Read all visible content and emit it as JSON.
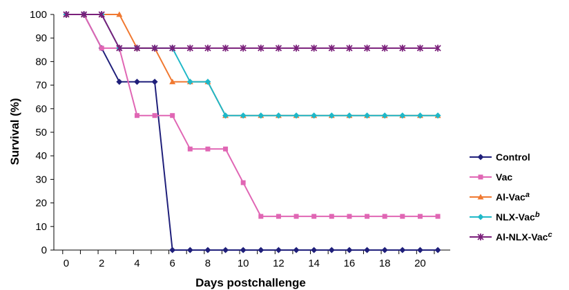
{
  "chart_data": {
    "type": "line",
    "xlabel": "Days postchallenge",
    "ylabel": "Survival (%)",
    "xlim": [
      -0.7,
      21.7
    ],
    "ylim": [
      0,
      100
    ],
    "x_ticks": [
      0,
      2,
      4,
      6,
      8,
      10,
      12,
      14,
      16,
      18,
      20
    ],
    "x_tick_labels": [
      "0",
      "2",
      "4",
      "6",
      "8",
      "10",
      "12",
      "14",
      "16",
      "18",
      "20"
    ],
    "y_ticks": [
      0,
      10,
      20,
      30,
      40,
      50,
      60,
      70,
      80,
      90,
      100
    ],
    "y_tick_labels": [
      "0",
      "10",
      "20",
      "30",
      "40",
      "50",
      "60",
      "70",
      "80",
      "90",
      "100"
    ],
    "grid": false,
    "legend_position": "right",
    "x": [
      0,
      1,
      2,
      3,
      4,
      5,
      6,
      7,
      8,
      9,
      10,
      11,
      12,
      13,
      14,
      15,
      16,
      17,
      18,
      19,
      20,
      21
    ],
    "series": [
      {
        "name": "Control",
        "superscript": "",
        "color": "#1f1f7a",
        "marker": "diamond",
        "values": [
          100,
          100,
          85.7,
          71.4,
          71.4,
          71.4,
          0,
          0,
          0,
          0,
          0,
          0,
          0,
          0,
          0,
          0,
          0,
          0,
          0,
          0,
          0,
          0
        ]
      },
      {
        "name": "Vac",
        "superscript": "",
        "color": "#e066b4",
        "marker": "square",
        "values": [
          100,
          100,
          85.7,
          85.7,
          57.1,
          57.1,
          57.1,
          42.9,
          42.9,
          42.9,
          28.6,
          14.3,
          14.3,
          14.3,
          14.3,
          14.3,
          14.3,
          14.3,
          14.3,
          14.3,
          14.3,
          14.3
        ]
      },
      {
        "name": "Al-Vac",
        "superscript": "a",
        "color": "#f07830",
        "marker": "triangle",
        "values": [
          100,
          100,
          100,
          100,
          85.7,
          85.7,
          71.4,
          71.4,
          71.4,
          57.1,
          57.1,
          57.1,
          57.1,
          57.1,
          57.1,
          57.1,
          57.1,
          57.1,
          57.1,
          57.1,
          57.1,
          57.1
        ]
      },
      {
        "name": "NLX-Vac",
        "superscript": "b",
        "color": "#1fb8c8",
        "marker": "diamond",
        "values": [
          100,
          100,
          100,
          85.7,
          85.7,
          85.7,
          85.7,
          71.4,
          71.4,
          57.1,
          57.1,
          57.1,
          57.1,
          57.1,
          57.1,
          57.1,
          57.1,
          57.1,
          57.1,
          57.1,
          57.1,
          57.1
        ]
      },
      {
        "name": "Al-NLX-Vac",
        "superscript": "c",
        "color": "#7a1f7a",
        "marker": "star",
        "values": [
          100,
          100,
          100,
          85.7,
          85.7,
          85.7,
          85.7,
          85.7,
          85.7,
          85.7,
          85.7,
          85.7,
          85.7,
          85.7,
          85.7,
          85.7,
          85.7,
          85.7,
          85.7,
          85.7,
          85.7,
          85.7
        ]
      }
    ]
  }
}
